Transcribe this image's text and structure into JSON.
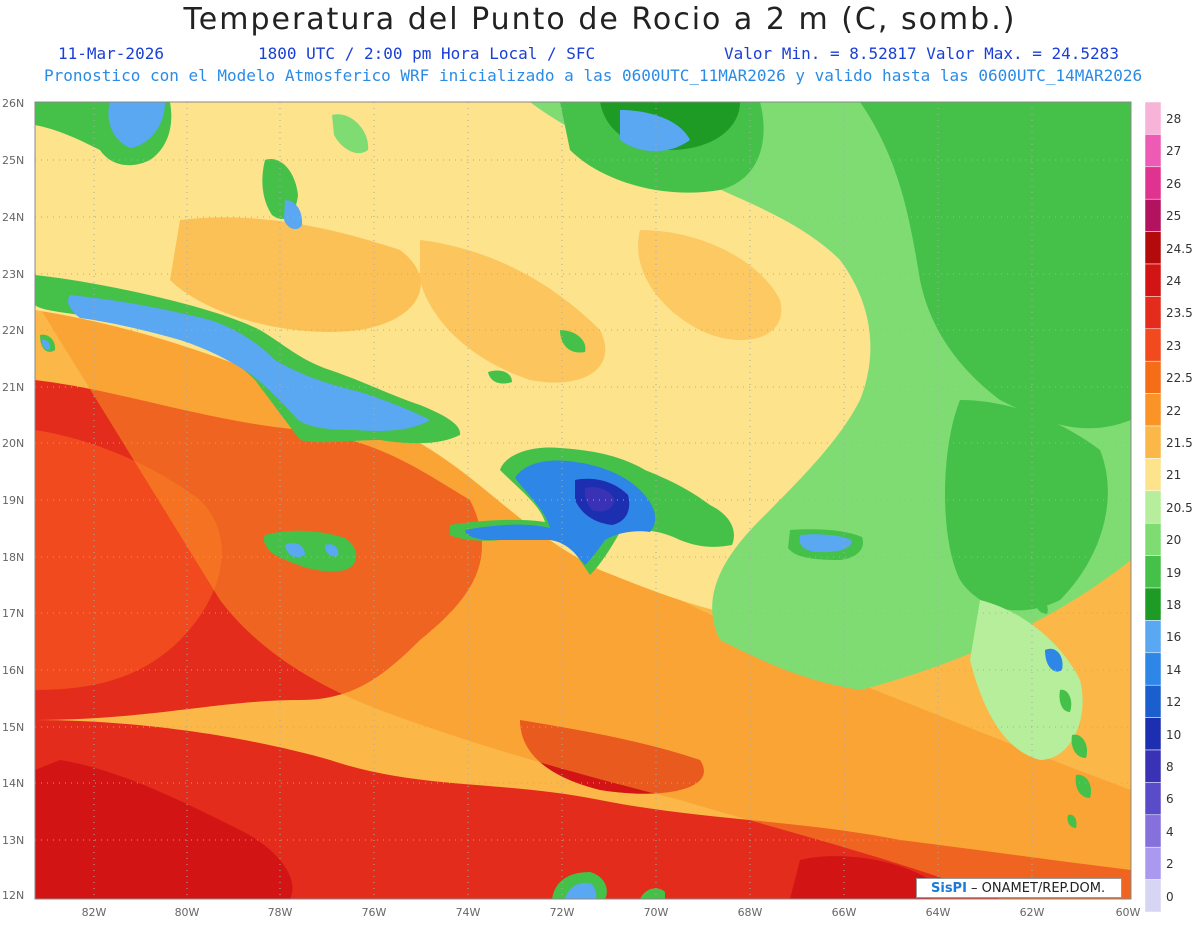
{
  "header": {
    "title": "Temperatura del Punto de Rocio a 2 m (C, somb.)",
    "date": "11-Mar-2026",
    "time": "1800 UTC / 2:00 pm Hora Local / SFC",
    "minmax": "Valor Min. = 8.52817  Valor Max. = 24.5283",
    "forecast": "Pronostico con el Modelo Atmosferico WRF inicializado a las 0600UTC_11MAR2026 y valido hasta las  0600UTC_14MAR2026"
  },
  "axes": {
    "latitudes": [
      "26N",
      "25N",
      "24N",
      "23N",
      "22N",
      "21N",
      "20N",
      "19N",
      "18N",
      "17N",
      "16N",
      "15N",
      "14N",
      "13N",
      "12N"
    ],
    "longitudes": [
      "82W",
      "80W",
      "78W",
      "76W",
      "74W",
      "72W",
      "70W",
      "68W",
      "66W",
      "64W",
      "62W",
      "60W"
    ]
  },
  "colorbar": {
    "levels": [
      "28",
      "27",
      "26",
      "25",
      "24.5",
      "24",
      "23.5",
      "23",
      "22.5",
      "22",
      "21.5",
      "21",
      "20.5",
      "20",
      "19",
      "18",
      "16",
      "14",
      "12",
      "10",
      "8",
      "6",
      "4",
      "2",
      "0"
    ],
    "colors": [
      "#f7b3d8",
      "#ee5bb4",
      "#e0328f",
      "#b3135e",
      "#b30b0b",
      "#d31414",
      "#e32c1c",
      "#f04a1e",
      "#f66d18",
      "#fa9426",
      "#fbb848",
      "#fde38c",
      "#b6ee9c",
      "#7fdc73",
      "#45c14a",
      "#1e9b24",
      "#5aa7f2",
      "#2e86e6",
      "#1b5fcf",
      "#1c2fb0",
      "#3a32b4",
      "#5a4cc8",
      "#8570dc",
      "#a99af0",
      "#d7d4f4"
    ]
  },
  "logo": {
    "brand": "SisPI",
    "org": " –  ONAMET/REP.DOM."
  }
}
